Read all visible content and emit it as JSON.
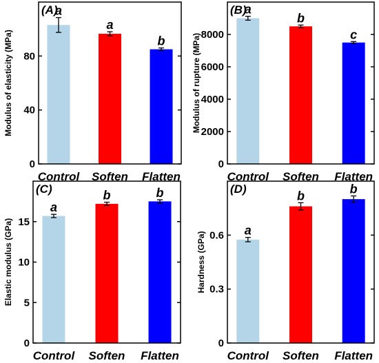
{
  "chart_data": [
    {
      "type": "bar",
      "panel": "(A)",
      "categories": [
        "Control",
        "Soften",
        "Flatten"
      ],
      "values": [
        103,
        96.5,
        85
      ],
      "errors": [
        5.5,
        1.5,
        1
      ],
      "colors": [
        "#b4d4e8",
        "#ff0000",
        "#0000ff"
      ],
      "significance": [
        "a",
        "a",
        "b"
      ],
      "ylabel": "Modulus of elasticity (MPa)",
      "ylim": [
        0,
        120
      ],
      "yticks": [
        0,
        40,
        80
      ]
    },
    {
      "type": "bar",
      "panel": "(B)",
      "categories": [
        "Control",
        "Soften",
        "Flatten"
      ],
      "values": [
        9000,
        8500,
        7500
      ],
      "errors": [
        120,
        80,
        60
      ],
      "colors": [
        "#b4d4e8",
        "#ff0000",
        "#0000ff"
      ],
      "significance": [
        "a",
        "b",
        "c"
      ],
      "ylabel": "Modulus of rupture (MPa)",
      "ylim": [
        0,
        10000
      ],
      "yticks": [
        0,
        2000,
        4000,
        6000,
        8000
      ]
    },
    {
      "type": "bar",
      "panel": "(C)",
      "categories": [
        "Control",
        "Soften",
        "Flatten"
      ],
      "values": [
        15.7,
        17.2,
        17.5
      ],
      "errors": [
        0.2,
        0.2,
        0.2
      ],
      "colors": [
        "#b4d4e8",
        "#ff0000",
        "#0000ff"
      ],
      "significance": [
        "a",
        "b",
        "b"
      ],
      "ylabel": "Elastic modulus (GPa)",
      "ylim": [
        0,
        20
      ],
      "yticks": [
        0,
        5,
        10,
        15
      ]
    },
    {
      "type": "bar",
      "panel": "(D)",
      "categories": [
        "Control",
        "Soften",
        "Flatten"
      ],
      "values": [
        0.575,
        0.76,
        0.8
      ],
      "errors": [
        0.012,
        0.02,
        0.018
      ],
      "colors": [
        "#b4d4e8",
        "#ff0000",
        "#0000ff"
      ],
      "significance": [
        "a",
        "b",
        "b"
      ],
      "ylabel": "Hardness (GPa)",
      "ylim": [
        0,
        0.9
      ],
      "yticks": [
        0,
        0.3,
        0.6
      ]
    }
  ]
}
